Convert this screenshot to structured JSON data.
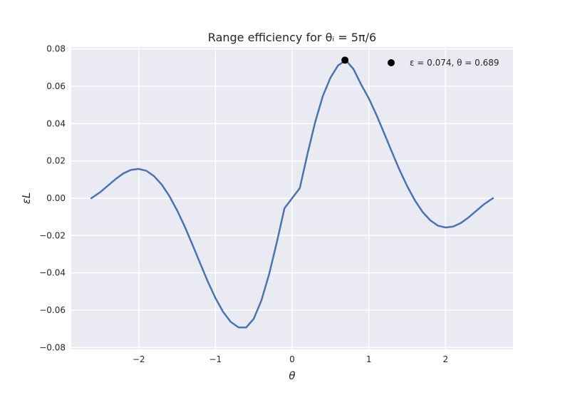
{
  "chart_data": {
    "type": "line",
    "title": "Range efficiency for θᵢ = 5π/6",
    "xlabel": "θ",
    "ylabel": "εL",
    "xlim": [
      -2.88,
      2.88
    ],
    "ylim": [
      -0.081,
      0.081
    ],
    "x_ticks": [
      -2,
      -1,
      0,
      1,
      2
    ],
    "x_tick_labels": [
      "−2",
      "−1",
      "0",
      "1",
      "2"
    ],
    "y_ticks": [
      -0.08,
      -0.06,
      -0.04,
      -0.02,
      0.0,
      0.02,
      0.04,
      0.06,
      0.08
    ],
    "y_tick_labels": [
      "−0.08",
      "−0.06",
      "−0.04",
      "−0.02",
      "0.00",
      "0.02",
      "0.04",
      "0.06",
      "0.08"
    ],
    "grid": true,
    "series": [
      {
        "name": "",
        "color": "#4C72B0",
        "x": [
          -2.618,
          -2.5,
          -2.4,
          -2.3,
          -2.2,
          -2.1,
          -2.0,
          -1.9,
          -1.8,
          -1.7,
          -1.6,
          -1.5,
          -1.4,
          -1.3,
          -1.2,
          -1.1,
          -1.0,
          -0.9,
          -0.8,
          -0.7,
          -0.6,
          -0.5,
          -0.4,
          -0.3,
          -0.2,
          -0.1,
          0.0,
          0.1,
          0.2,
          0.3,
          0.4,
          0.5,
          0.6,
          0.7,
          0.8,
          0.9,
          1.0,
          1.1,
          1.2,
          1.3,
          1.4,
          1.5,
          1.6,
          1.7,
          1.8,
          1.9,
          2.0,
          2.1,
          2.2,
          2.3,
          2.4,
          2.5,
          2.618
        ],
        "y": [
          0.0,
          0.0033,
          0.0068,
          0.0103,
          0.0133,
          0.0152,
          0.0157,
          0.0147,
          0.0118,
          0.0073,
          0.0011,
          -0.0065,
          -0.0152,
          -0.0249,
          -0.0348,
          -0.0446,
          -0.0535,
          -0.0609,
          -0.0663,
          -0.0692,
          -0.0693,
          -0.0646,
          -0.0547,
          -0.0407,
          -0.0237,
          -0.0054,
          0.0,
          0.0054,
          0.0237,
          0.0407,
          0.0547,
          0.0646,
          0.0712,
          0.0739,
          0.0692,
          0.0609,
          0.0535,
          0.0446,
          0.0348,
          0.0249,
          0.0152,
          0.0065,
          -0.0011,
          -0.0073,
          -0.0118,
          -0.0147,
          -0.0157,
          -0.0152,
          -0.0133,
          -0.0103,
          -0.0068,
          -0.0033,
          0.0
        ]
      }
    ],
    "max_point": {
      "x": 0.689,
      "y": 0.074
    },
    "legend": {
      "position": "top-right",
      "label": "ε =  0.074, θ =  0.689",
      "marker_color": "#000000"
    }
  }
}
